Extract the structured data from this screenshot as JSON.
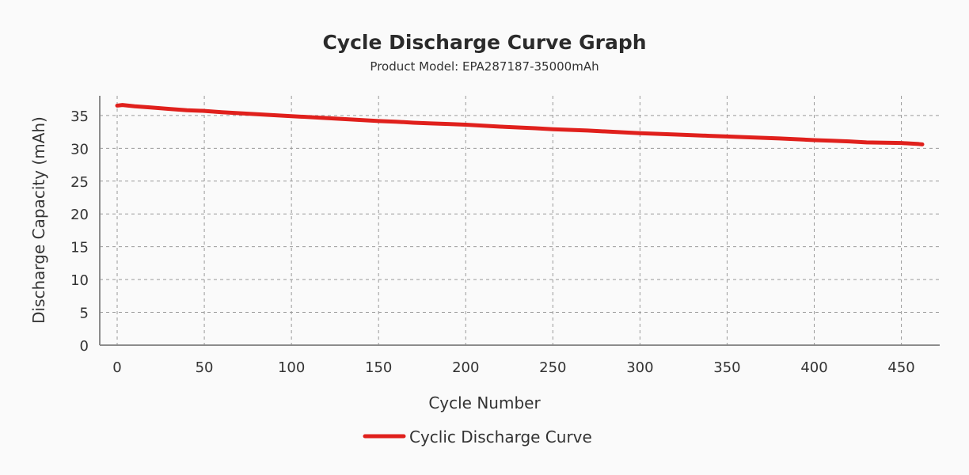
{
  "chart_data": {
    "type": "line",
    "title": "Cycle Discharge Curve Graph",
    "subtitle": "Product Model: EPA287187-35000mAh",
    "xlabel": "Cycle Number",
    "ylabel": "Discharge Capacity (mAh)",
    "xlim": [
      -10,
      472
    ],
    "ylim": [
      0,
      38
    ],
    "x_ticks": [
      0,
      50,
      100,
      150,
      200,
      250,
      300,
      350,
      400,
      450
    ],
    "y_ticks": [
      0,
      5,
      10,
      15,
      20,
      25,
      30,
      35
    ],
    "grid": true,
    "legend_position": "bottom-center",
    "colors": {
      "series": "#e0201c",
      "grid": "#9a9a9a",
      "axis": "#8c8c8c"
    },
    "series": [
      {
        "name": "Cyclic Discharge Curve",
        "x": [
          0,
          3,
          10,
          20,
          30,
          40,
          50,
          60,
          80,
          100,
          120,
          140,
          150,
          160,
          170,
          180,
          190,
          200,
          220,
          240,
          250,
          270,
          300,
          320,
          340,
          350,
          360,
          380,
          400,
          410,
          420,
          430,
          440,
          450,
          460,
          462
        ],
        "y": [
          36.5,
          36.6,
          36.4,
          36.2,
          36.0,
          35.8,
          35.7,
          35.5,
          35.2,
          34.9,
          34.6,
          34.3,
          34.15,
          34.05,
          33.9,
          33.8,
          33.7,
          33.6,
          33.3,
          33.05,
          32.9,
          32.7,
          32.3,
          32.1,
          31.9,
          31.8,
          31.7,
          31.5,
          31.25,
          31.15,
          31.05,
          30.9,
          30.85,
          30.8,
          30.65,
          30.6
        ]
      }
    ]
  }
}
